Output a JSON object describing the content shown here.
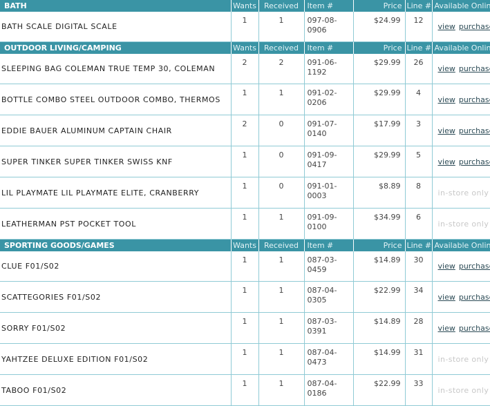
{
  "columns": {
    "wants": "Wants",
    "received": "Received",
    "item": "Item #",
    "price": "Price",
    "line": "Line #",
    "available": "Available Online"
  },
  "links": {
    "view": "view",
    "purchase": "purchase",
    "instore": "in-store only"
  },
  "sections": [
    {
      "category": "BATH",
      "items": [
        {
          "name": "BATH SCALE DIGITAL SCALE",
          "wants": "1",
          "received": "1",
          "item_a": "097-08-",
          "item_b": "0906",
          "price": "$24.99",
          "line": "12",
          "online": true
        }
      ]
    },
    {
      "category": "OUTDOOR LIVING/CAMPING",
      "items": [
        {
          "name": "SLEEPING BAG COLEMAN TRUE TEMP 30, COLEMAN",
          "wants": "2",
          "received": "2",
          "item_a": "091-06-",
          "item_b": "1192",
          "price": "$29.99",
          "line": "26",
          "online": true
        },
        {
          "name": "BOTTLE COMBO STEEL OUTDOOR COMBO, THERMOS",
          "wants": "1",
          "received": "1",
          "item_a": "091-02-",
          "item_b": "0206",
          "price": "$29.99",
          "line": "4",
          "online": true
        },
        {
          "name": "EDDIE BAUER ALUMINUM CAPTAIN CHAIR",
          "wants": "2",
          "received": "0",
          "item_a": "091-07-",
          "item_b": "0140",
          "price": "$17.99",
          "line": "3",
          "online": true
        },
        {
          "name": "SUPER TINKER SUPER TINKER SWISS KNF",
          "wants": "1",
          "received": "0",
          "item_a": "091-09-",
          "item_b": "0417",
          "price": "$29.99",
          "line": "5",
          "online": true
        },
        {
          "name": "LIL PLAYMATE LIL PLAYMATE ELITE, CRANBERRY",
          "wants": "1",
          "received": "0",
          "item_a": "091-01-",
          "item_b": "0003",
          "price": "$8.89",
          "line": "8",
          "online": false
        },
        {
          "name": "LEATHERMAN PST POCKET TOOL",
          "wants": "1",
          "received": "1",
          "item_a": "091-09-",
          "item_b": "0100",
          "price": "$34.99",
          "line": "6",
          "online": false
        }
      ]
    },
    {
      "category": "SPORTING GOODS/GAMES",
      "items": [
        {
          "name": "CLUE F01/S02",
          "wants": "1",
          "received": "1",
          "item_a": "087-03-",
          "item_b": "0459",
          "price": "$14.89",
          "line": "30",
          "online": true
        },
        {
          "name": "SCATTEGORIES F01/S02",
          "wants": "1",
          "received": "1",
          "item_a": "087-04-",
          "item_b": "0305",
          "price": "$22.99",
          "line": "34",
          "online": true
        },
        {
          "name": "SORRY F01/S02",
          "wants": "1",
          "received": "1",
          "item_a": "087-03-",
          "item_b": "0391",
          "price": "$14.89",
          "line": "28",
          "online": true
        },
        {
          "name": "YAHTZEE DELUXE EDITION F01/S02",
          "wants": "1",
          "received": "1",
          "item_a": "087-04-",
          "item_b": "0473",
          "price": "$14.99",
          "line": "31",
          "online": false
        },
        {
          "name": "TABOO F01/S02",
          "wants": "1",
          "received": "1",
          "item_a": "087-04-",
          "item_b": "0186",
          "price": "$22.99",
          "line": "33",
          "online": false
        }
      ]
    }
  ]
}
